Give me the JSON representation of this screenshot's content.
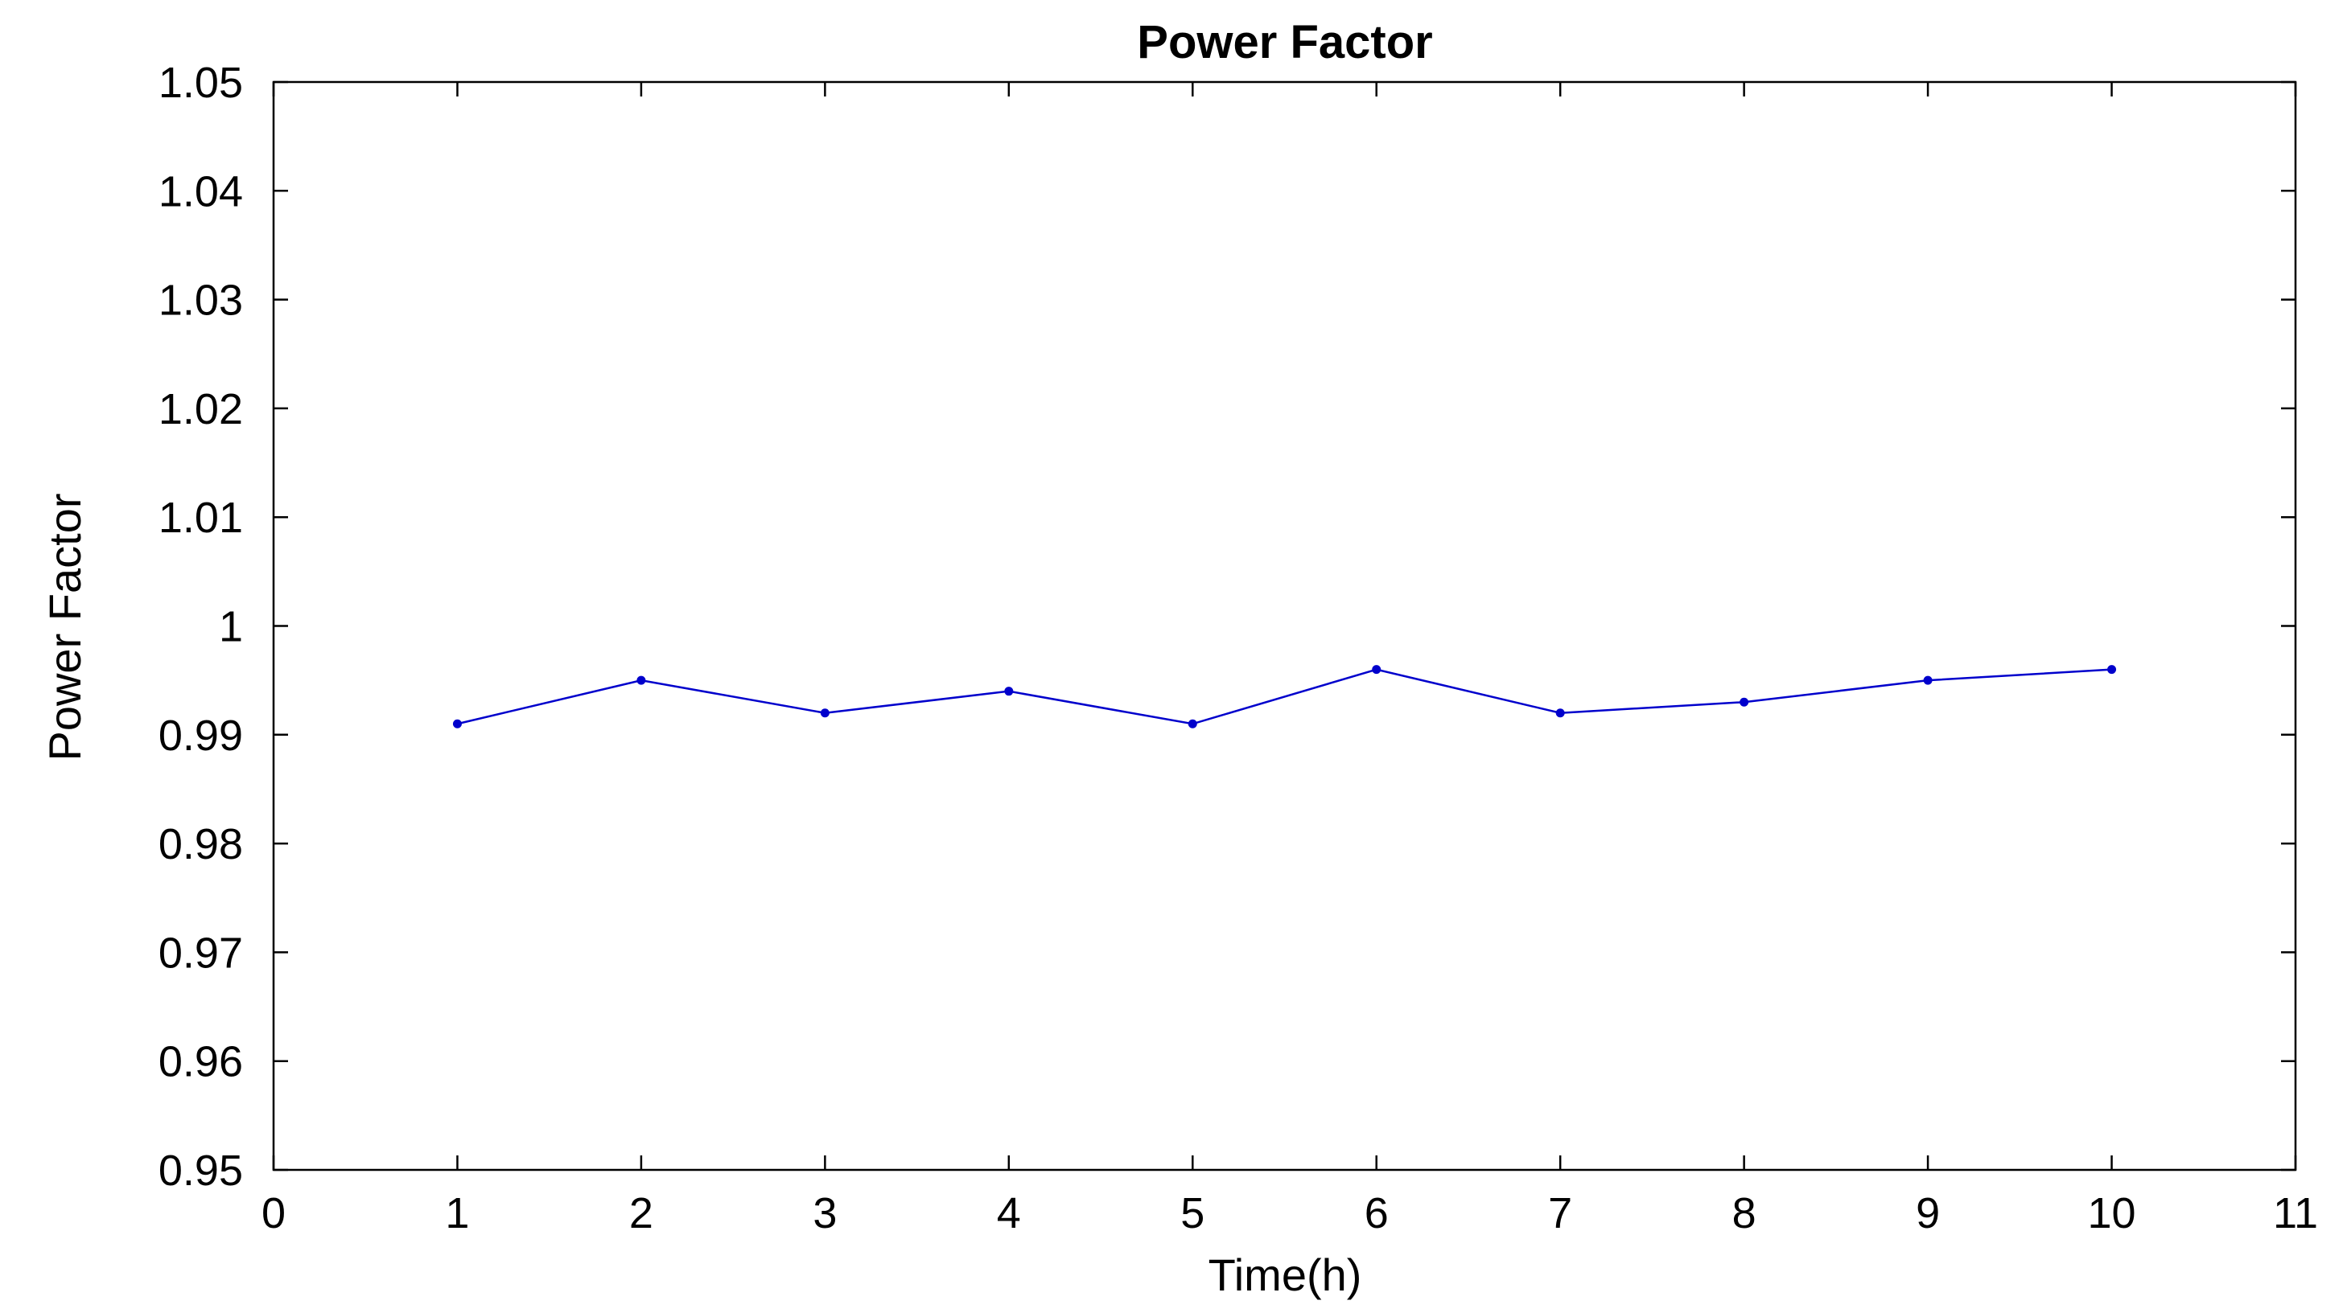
{
  "chart_data": {
    "type": "line",
    "title": "Power Factor",
    "xlabel": "Time(h)",
    "ylabel": "Power Factor",
    "xlim": [
      0,
      11
    ],
    "ylim": [
      0.95,
      1.05
    ],
    "xticks": [
      0,
      1,
      2,
      3,
      4,
      5,
      6,
      7,
      8,
      9,
      10,
      11
    ],
    "xtick_labels": [
      "0",
      "1",
      "2",
      "3",
      "4",
      "5",
      "6",
      "7",
      "8",
      "9",
      "10",
      "11"
    ],
    "yticks": [
      0.95,
      0.96,
      0.97,
      0.98,
      0.99,
      1.0,
      1.01,
      1.02,
      1.03,
      1.04,
      1.05
    ],
    "ytick_labels": [
      "0.95",
      "0.96",
      "0.97",
      "0.98",
      "0.99",
      "1",
      "1.01",
      "1.02",
      "1.03",
      "1.04",
      "1.05"
    ],
    "grid": false,
    "series": [
      {
        "color": "#0000cc",
        "x": [
          1,
          2,
          3,
          4,
          5,
          6,
          7,
          8,
          9,
          10
        ],
        "y": [
          0.991,
          0.995,
          0.992,
          0.994,
          0.991,
          0.996,
          0.992,
          0.993,
          0.995,
          0.996
        ]
      }
    ]
  }
}
